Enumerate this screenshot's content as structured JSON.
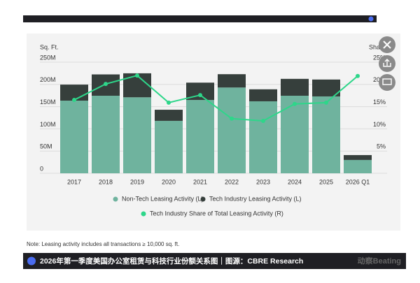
{
  "chart_data": {
    "type": "bar",
    "stacked": true,
    "y_label": "Sq. Ft.",
    "y2_label": "Share",
    "categories": [
      "2017",
      "2018",
      "2019",
      "2020",
      "2021",
      "2022",
      "2023",
      "2024",
      "2025",
      "2026 Q1"
    ],
    "series": [
      {
        "name": "Non-Tech Leasing Activity (L)",
        "color": "#6fb39e",
        "values": [
          163500000,
          174500000,
          171000000,
          118000000,
          165000000,
          193000000,
          162000000,
          174500000,
          173000000,
          30000000
        ]
      },
      {
        "name": "Tech Industry Leasing Activity (L)",
        "color": "#363f3c",
        "values": [
          36000000,
          48000000,
          54000000,
          25000000,
          39000000,
          30000000,
          27000000,
          38000000,
          38000000,
          11000000
        ]
      },
      {
        "name": "Tech Industry Share of Total Leasing Activity (R)",
        "color": "#2ed68a",
        "type": "line",
        "axis": "y2",
        "values": [
          16.5,
          20.1,
          22.0,
          15.9,
          17.6,
          12.3,
          11.8,
          15.6,
          15.9,
          21.9
        ]
      }
    ],
    "ylim": [
      0,
      250000000
    ],
    "yticks": [
      0,
      {
        "value": 50000000,
        "label": "50M"
      },
      {
        "value": 100000000,
        "label": "100M"
      },
      {
        "value": 150000000,
        "label": "150M"
      },
      {
        "value": 200000000,
        "label": "200M"
      },
      {
        "value": 250000000,
        "label": "250M"
      }
    ],
    "y2lim": [
      0,
      25
    ],
    "y2ticks": [
      {
        "value": 5,
        "label": "5%"
      },
      {
        "value": 10,
        "label": "10%"
      },
      {
        "value": 15,
        "label": "15%"
      },
      {
        "value": 20,
        "label": "20%"
      },
      {
        "value": 25,
        "label": "25%"
      }
    ],
    "grid": true
  },
  "note": "Note: Leasing activity includes all transactions ≥ 10,000 sq. ft.",
  "caption": "2026年第一季度美国办公室租赁与科技行业份额关系图｜图源：CBRE Research",
  "watermark": "动察Beating"
}
